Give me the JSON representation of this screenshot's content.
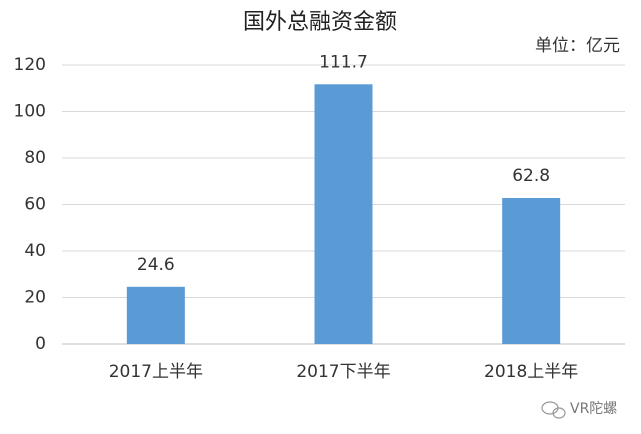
{
  "chart_data": {
    "type": "bar",
    "title": "国外总融资金额",
    "unit_label": "单位：亿元",
    "categories": [
      "2017上半年",
      "2017下半年",
      "2018上半年"
    ],
    "values": [
      24.6,
      111.7,
      62.8
    ],
    "color": "#5b9bd5",
    "ylim": [
      0,
      120
    ],
    "yticks": [
      0,
      20,
      40,
      60,
      80,
      100,
      120
    ],
    "grid": true
  },
  "watermark": "VR陀螺"
}
